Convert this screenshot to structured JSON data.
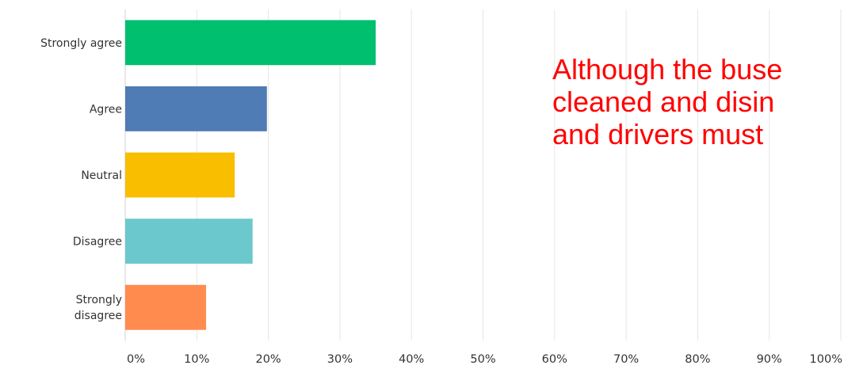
{
  "chart_data": {
    "type": "bar",
    "orientation": "horizontal",
    "categories": [
      [
        "Strongly agree"
      ],
      [
        "Agree"
      ],
      [
        "Neutral"
      ],
      [
        "Disagree"
      ],
      [
        "Strongly",
        "disagree"
      ]
    ],
    "values": [
      35,
      19.8,
      15.3,
      17.8,
      11.3
    ],
    "colors": [
      "#00bf6f",
      "#507cb6",
      "#f9be00",
      "#6bc8cd",
      "#ff8b4f"
    ],
    "xlim": [
      0,
      100
    ],
    "xticks": [
      "0%",
      "10%",
      "20%",
      "30%",
      "40%",
      "50%",
      "60%",
      "70%",
      "80%",
      "90%",
      "100%"
    ],
    "grid": true,
    "title": "",
    "xlabel": "",
    "ylabel": ""
  },
  "overlay_text": {
    "lines": [
      "Although the buse",
      "cleaned and disin",
      "and drivers must"
    ],
    "color": "#ff0000"
  }
}
